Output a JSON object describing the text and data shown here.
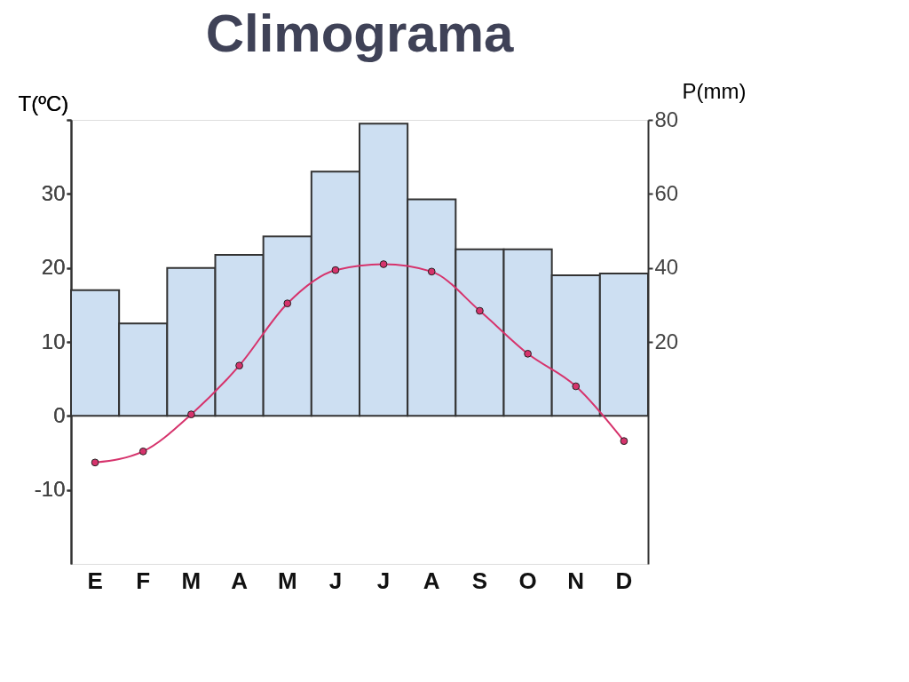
{
  "chart_data": {
    "type": "bar",
    "title": "Climograma",
    "categories": [
      "E",
      "F",
      "M",
      "A",
      "M",
      "J",
      "J",
      "A",
      "S",
      "O",
      "N",
      "D"
    ],
    "series": [
      {
        "name": null,
        "axis": "y2",
        "color": "#cddff2",
        "values": [
          34,
          25,
          40,
          43.5,
          48.5,
          66,
          79,
          58.5,
          45,
          45,
          38,
          38.5
        ]
      },
      {
        "name": null,
        "type": "line",
        "axis": "y",
        "color": "#d6336c",
        "marker": "circle",
        "values": [
          -6.3,
          -4.8,
          0.2,
          6.8,
          15.2,
          19.7,
          20.5,
          19.5,
          14.2,
          8.4,
          4,
          -3.4
        ]
      }
    ],
    "ylabel": "T(ºC)",
    "y2label": "P(mm)",
    "ylim": [
      -20,
      40
    ],
    "yticks": [
      -10,
      0,
      10,
      20,
      30,
      {
        "value": 40,
        "label": null
      }
    ],
    "y2lim": [
      -40,
      80
    ],
    "y2ticks": [
      20,
      40,
      60,
      80
    ],
    "grid": false
  }
}
